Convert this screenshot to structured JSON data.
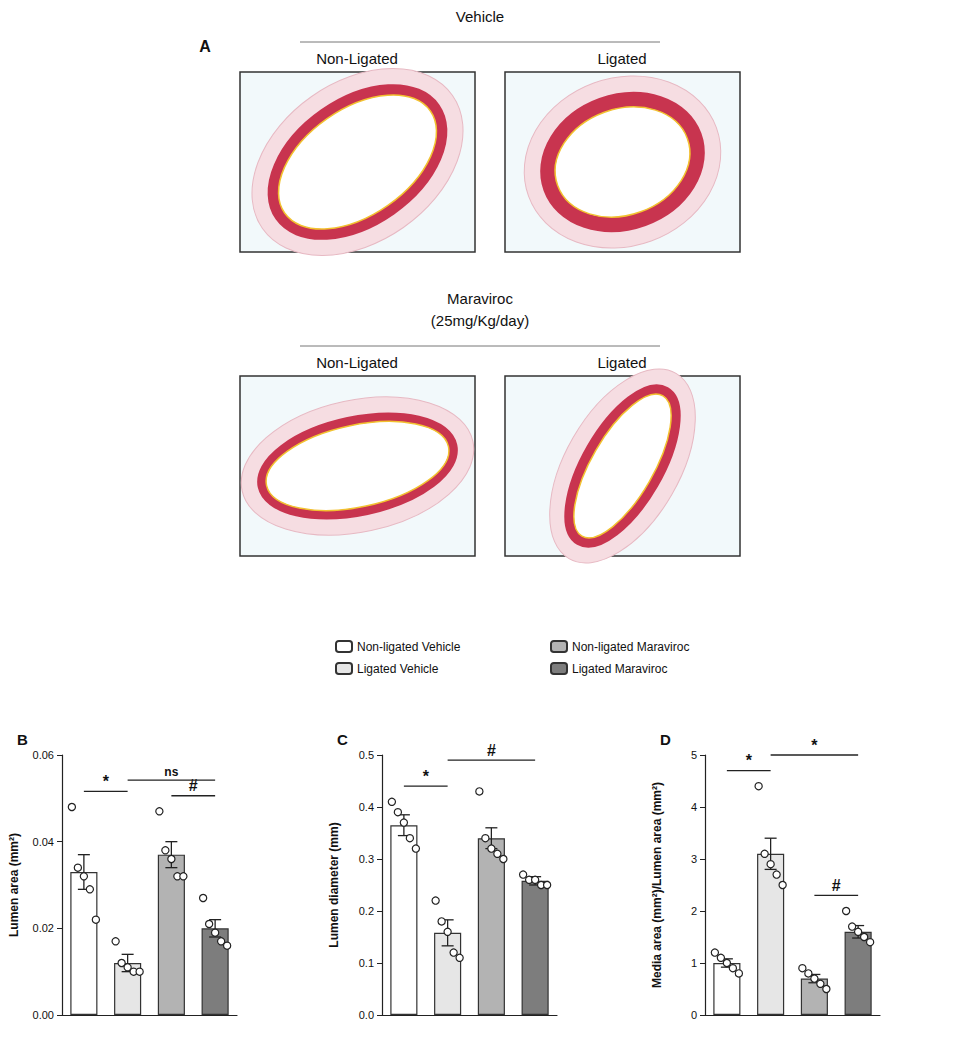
{
  "panel_a": {
    "label": "A",
    "groups": [
      {
        "title": [
          "Vehicle"
        ],
        "conditions": [
          "Non-Ligated",
          "Ligated"
        ]
      },
      {
        "title": [
          "Maraviroc",
          "(25mg/Kg/day)"
        ],
        "conditions": [
          "Non-Ligated",
          "Ligated"
        ]
      }
    ]
  },
  "chart_data": [
    {
      "type": "bar",
      "panel": "B",
      "y_label": "Lumen area (mm²)",
      "categories": [
        "Non-ligated Vehicle",
        "Ligated Vehicle",
        "Non-ligated Maraviroc",
        "Ligated Maraviroc"
      ],
      "values": [
        0.033,
        0.012,
        0.037,
        0.02
      ],
      "errors": [
        0.004,
        0.002,
        0.003,
        0.002
      ],
      "points": [
        [
          0.048,
          0.034,
          0.032,
          0.029,
          0.022
        ],
        [
          0.017,
          0.012,
          0.011,
          0.01,
          0.01
        ],
        [
          0.047,
          0.038,
          0.036,
          0.032,
          0.032
        ],
        [
          0.027,
          0.021,
          0.019,
          0.017,
          0.016
        ]
      ],
      "colors": [
        "#ffffff",
        "#e6e6e6",
        "#b3b3b3",
        "#7d7d7d"
      ],
      "ylim": [
        0,
        0.06
      ],
      "yticks": [
        {
          "value": 0,
          "label": "0.00"
        },
        {
          "value": 0.02,
          "label": "0.02"
        },
        {
          "value": 0.04,
          "label": "0.04"
        },
        {
          "value": 0.06,
          "label": "0.06"
        }
      ],
      "annotations": [
        {
          "label": "*",
          "from": 0,
          "to": 1
        },
        {
          "label": "#",
          "from": 2,
          "to": 3
        },
        {
          "label": "ns",
          "from": 1,
          "to": 3
        }
      ],
      "tick_labels": "y",
      "legend": "top",
      "grid": false
    },
    {
      "type": "bar",
      "panel": "C",
      "y_label": "Lumen diameter (mm)",
      "categories": [
        "Non-ligated Vehicle",
        "Ligated Vehicle",
        "Non-ligated Maraviroc",
        "Ligated Maraviroc"
      ],
      "values": [
        0.365,
        0.158,
        0.34,
        0.258
      ],
      "errors": [
        0.02,
        0.025,
        0.02,
        0.008
      ],
      "points": [
        [
          0.41,
          0.39,
          0.37,
          0.34,
          0.32
        ],
        [
          0.22,
          0.18,
          0.16,
          0.12,
          0.11
        ],
        [
          0.43,
          0.34,
          0.32,
          0.31,
          0.3
        ],
        [
          0.27,
          0.26,
          0.26,
          0.25,
          0.25
        ]
      ],
      "colors": [
        "#ffffff",
        "#e6e6e6",
        "#b3b3b3",
        "#7d7d7d"
      ],
      "ylim": [
        0,
        0.5
      ],
      "yticks": [
        {
          "value": 0,
          "label": "0.0"
        },
        0.1,
        0.2,
        0.3,
        0.4,
        0.5
      ],
      "annotations": [
        {
          "label": "*",
          "from": 0,
          "to": 1
        },
        {
          "label": "#",
          "from": 1,
          "to": 3
        }
      ],
      "tick_labels": "y",
      "legend": "top",
      "grid": false
    },
    {
      "type": "bar",
      "panel": "D",
      "y_label": "Media area (mm²)/Lumen area (mm²)",
      "categories": [
        "Non-ligated Vehicle",
        "Ligated Vehicle",
        "Non-ligated Maraviroc",
        "Ligated Maraviroc"
      ],
      "values": [
        1.0,
        3.1,
        0.7,
        1.6
      ],
      "errors": [
        0.08,
        0.3,
        0.08,
        0.12
      ],
      "points": [
        [
          1.2,
          1.1,
          1.0,
          0.9,
          0.8
        ],
        [
          4.4,
          3.1,
          2.9,
          2.7,
          2.5
        ],
        [
          0.9,
          0.8,
          0.7,
          0.6,
          0.5
        ],
        [
          2.0,
          1.7,
          1.6,
          1.5,
          1.4
        ]
      ],
      "colors": [
        "#ffffff",
        "#e6e6e6",
        "#b3b3b3",
        "#7d7d7d"
      ],
      "ylim": [
        0,
        5
      ],
      "yticks": [
        0,
        1,
        2,
        3,
        4,
        5
      ],
      "annotations": [
        {
          "label": "*",
          "from": 0,
          "to": 1
        },
        {
          "label": "#",
          "from": 2,
          "to": 3
        },
        {
          "label": "*",
          "from": 1,
          "to": 3
        }
      ],
      "tick_labels": "y",
      "legend": "top",
      "grid": false
    }
  ]
}
